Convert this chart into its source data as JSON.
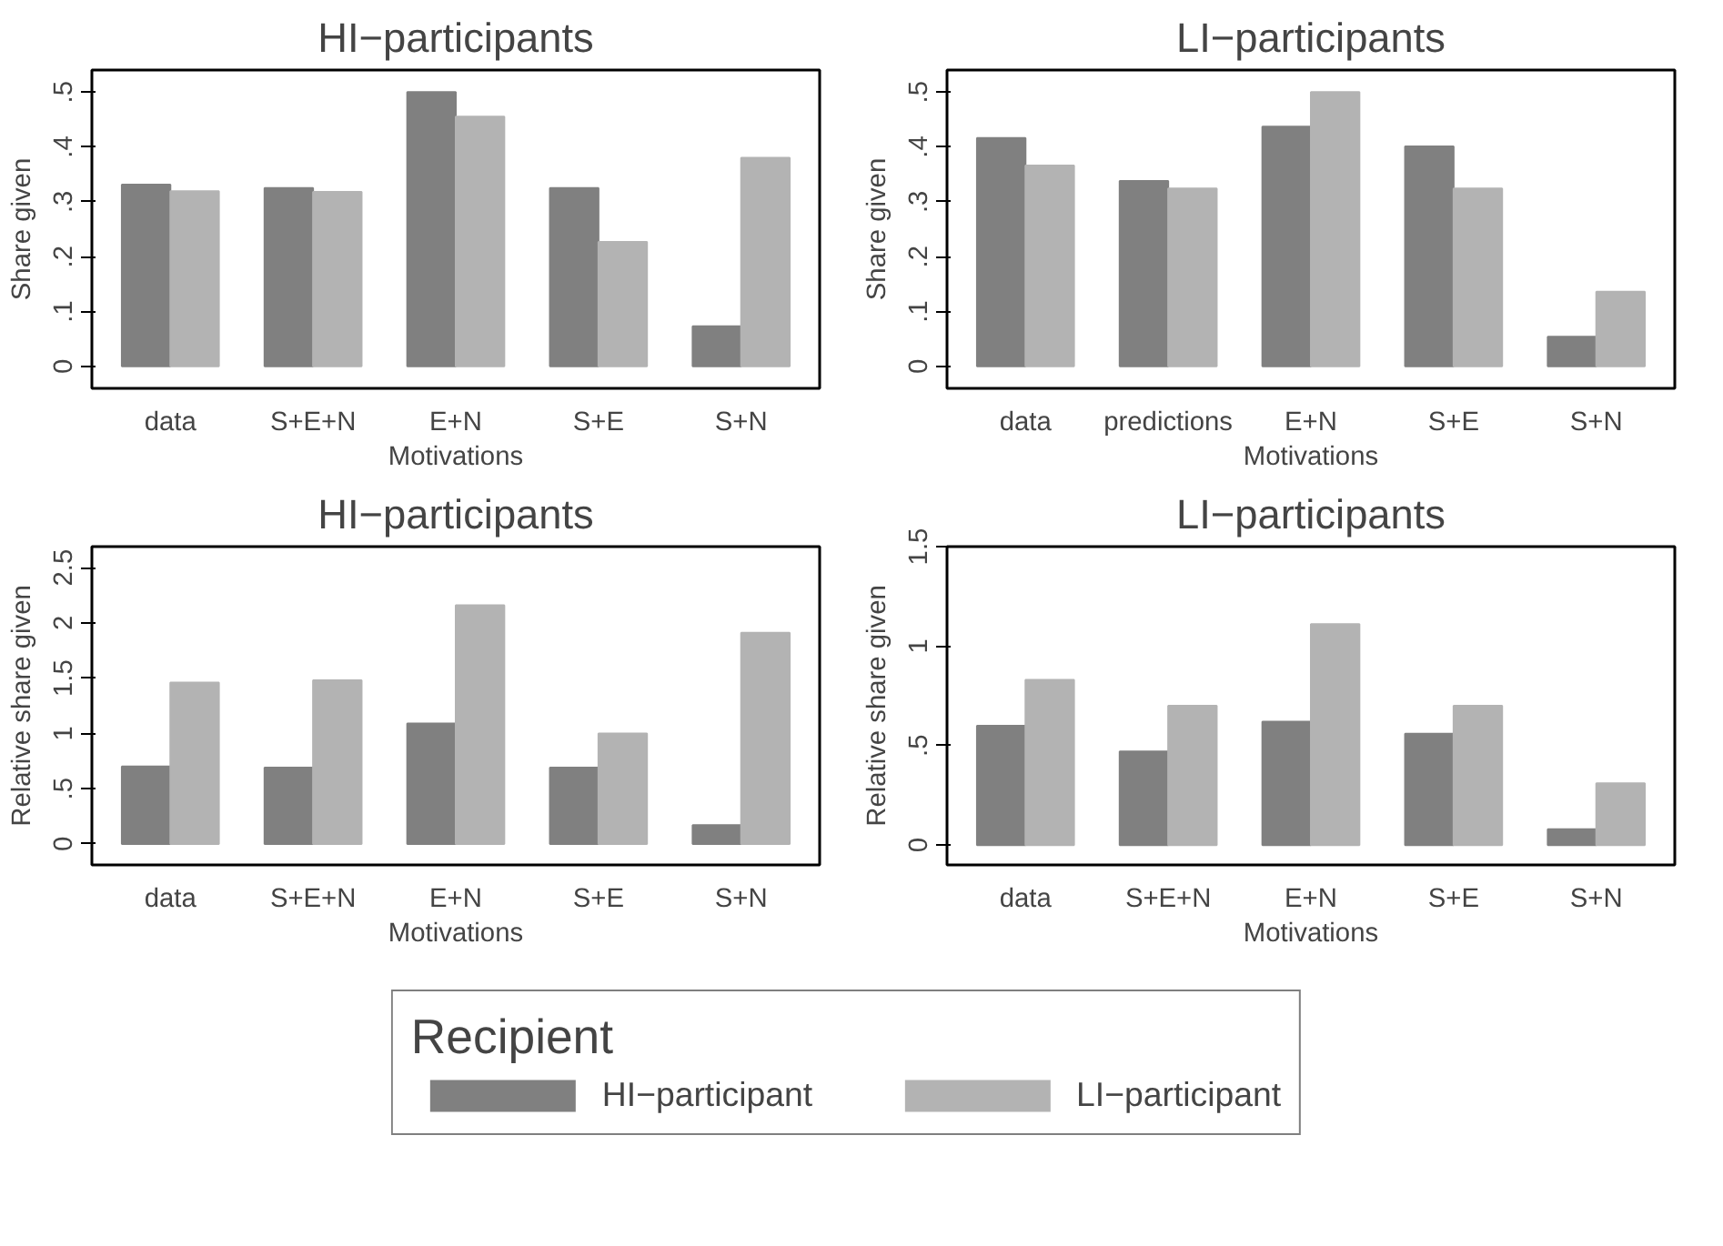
{
  "chart_data": [
    {
      "type": "bar",
      "title": "HI−participants",
      "xlabel": "Motivations",
      "ylabel": "Share given",
      "categories": [
        "data",
        "S+E+N",
        "E+N",
        "S+E",
        "S+N"
      ],
      "ylim": [
        -0.04,
        0.54
      ],
      "yticks": [
        0,
        {
          "value": 0.1,
          "label": ".1"
        },
        {
          "value": 0.2,
          "label": ".2"
        },
        {
          "value": 0.3,
          "label": ".3"
        },
        {
          "value": 0.4,
          "label": ".4"
        },
        {
          "value": 0.5,
          "label": ".5"
        }
      ],
      "grid": false,
      "legend": "bottom",
      "legend_title": "Recipient",
      "series": [
        {
          "name": "HI−participant",
          "color": "#808080",
          "values": [
            0.331,
            0.325,
            0.5,
            0.325,
            0.073
          ]
        },
        {
          "name": "LI−participant",
          "color": "#b3b3b3",
          "values": [
            0.319,
            0.318,
            0.455,
            0.227,
            0.38
          ]
        }
      ]
    },
    {
      "type": "bar",
      "title": "LI−participants",
      "xlabel": "Motivations",
      "ylabel": "Share given",
      "categories": [
        "data",
        "predictions",
        "E+N",
        "S+E",
        "S+N"
      ],
      "ylim": [
        -0.04,
        0.54
      ],
      "yticks": [
        0,
        {
          "value": 0.1,
          "label": ".1"
        },
        {
          "value": 0.2,
          "label": ".2"
        },
        {
          "value": 0.3,
          "label": ".3"
        },
        {
          "value": 0.4,
          "label": ".4"
        },
        {
          "value": 0.5,
          "label": ".5"
        }
      ],
      "grid": false,
      "series": [
        {
          "color": "#808080",
          "values": [
            0.416,
            0.338,
            0.437,
            0.401,
            0.054
          ]
        },
        {
          "color": "#b3b3b3",
          "values": [
            0.366,
            0.324,
            0.5,
            0.324,
            0.136
          ]
        }
      ]
    },
    {
      "type": "bar",
      "title": "HI−participants",
      "xlabel": "Motivations",
      "ylabel": "Relative share given",
      "categories": [
        "data",
        "S+E+N",
        "E+N",
        "S+E",
        "S+N"
      ],
      "ylim": [
        -0.19,
        2.69
      ],
      "yticks": [
        0,
        {
          "value": 0.5,
          "label": ".5"
        },
        1,
        1.5,
        2,
        2.5
      ],
      "grid": false,
      "series": [
        {
          "color": "#808080",
          "values": [
            0.7,
            0.69,
            1.09,
            0.69,
            0.17
          ]
        },
        {
          "color": "#b3b3b3",
          "values": [
            1.46,
            1.48,
            2.16,
            1.0,
            1.91
          ]
        }
      ]
    },
    {
      "type": "bar",
      "title": "LI−participants",
      "xlabel": "Motivations",
      "ylabel": "Relative share given",
      "categories": [
        "data",
        "S+E+N",
        "E+N",
        "S+E",
        "S+N"
      ],
      "ylim": [
        -0.1,
        1.5
      ],
      "yticks": [
        0,
        {
          "value": 0.5,
          "label": ".5"
        },
        1,
        1.5
      ],
      "grid": false,
      "series": [
        {
          "color": "#808080",
          "values": [
            0.6,
            0.47,
            0.62,
            0.56,
            0.08
          ]
        },
        {
          "color": "#b3b3b3",
          "values": [
            0.83,
            0.7,
            1.11,
            0.7,
            0.31
          ]
        }
      ]
    }
  ]
}
